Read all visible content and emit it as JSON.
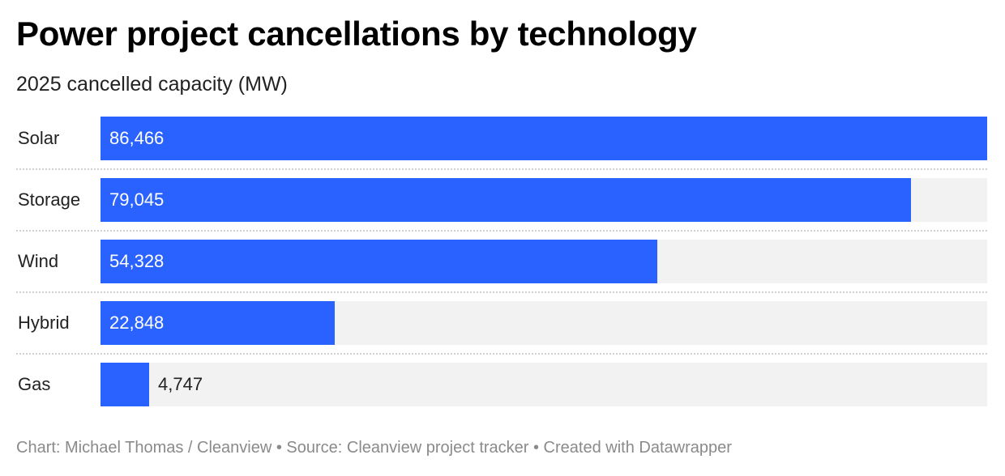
{
  "header": {
    "title": "Power project cancellations by technology",
    "subtitle": "2025 cancelled capacity (MW)"
  },
  "footer": {
    "credit": "Chart: Michael Thomas / Cleanview • Source: Cleanview project tracker • Created with Datawrapper"
  },
  "colors": {
    "bar": "#2a62ff",
    "track": "#f2f2f2",
    "divider": "#cfcfcf"
  },
  "chart_data": {
    "type": "bar",
    "orientation": "horizontal",
    "title": "Power project cancellations by technology",
    "subtitle": "2025 cancelled capacity (MW)",
    "xlabel": "",
    "ylabel": "",
    "categories": [
      "Solar",
      "Storage",
      "Wind",
      "Hybrid",
      "Gas"
    ],
    "values": [
      86466,
      79045,
      54328,
      22848,
      4747
    ],
    "value_labels": [
      "86,466",
      "79,045",
      "54,328",
      "22,848",
      "4,747"
    ],
    "xlim": [
      0,
      86466
    ],
    "grid": false,
    "legend": "none"
  }
}
